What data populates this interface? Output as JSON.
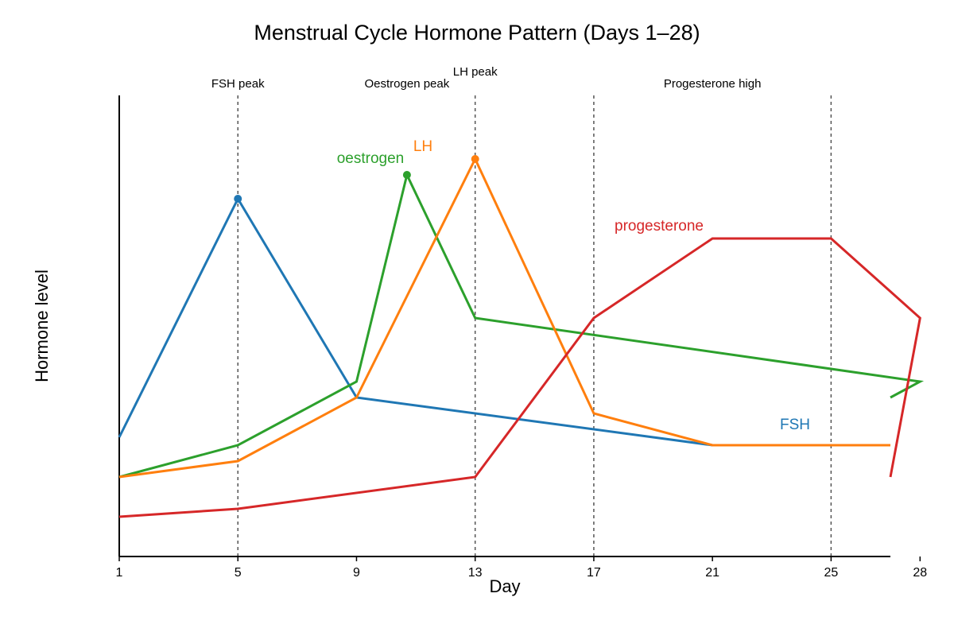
{
  "chart_data": {
    "type": "line",
    "title": "Menstrual Cycle Hormone Pattern (Days 1–28)",
    "xlabel": "Day",
    "ylabel": "Hormone level",
    "xlim": [
      1,
      27
    ],
    "ylim": [
      0,
      30
    ],
    "x_ticks": [
      1,
      5,
      9,
      13,
      17,
      21,
      25,
      28
    ],
    "tick_labels": [
      "1",
      "5",
      "9",
      "13",
      "17",
      "21",
      "25",
      "28"
    ],
    "grid": false,
    "phase_markers": [
      {
        "label": "FSH peak",
        "day": 5,
        "dashed_line": true
      },
      {
        "label": "Oestrogen peak",
        "day": 10.7,
        "dashed_line": false
      },
      {
        "label": "LH peak",
        "day": 13,
        "dashed_line": true
      },
      {
        "label": "",
        "day": 17,
        "dashed_line": true
      },
      {
        "label": "Progesterone high",
        "day": 21,
        "dashed_line": false
      },
      {
        "label": "",
        "day": 25,
        "dashed_line": true
      }
    ],
    "series": [
      {
        "name": "FSH",
        "color": "#1f77b4",
        "x": [
          1,
          5,
          9,
          21,
          27
        ],
        "y": [
          7.5,
          22.5,
          10,
          7,
          7
        ],
        "peak_x": 5,
        "peak_y": 22.5
      },
      {
        "name": "oestrogen",
        "color": "#2ca02c",
        "x": [
          1,
          5,
          9,
          10.7,
          13,
          28,
          27
        ],
        "y": [
          5,
          7,
          11,
          24,
          15,
          11,
          10
        ],
        "peak_x": 10.7,
        "peak_y": 24
      },
      {
        "name": "LH",
        "color": "#ff7f0e",
        "x": [
          1,
          5,
          9,
          13,
          17,
          21,
          27
        ],
        "y": [
          5,
          6,
          10,
          25,
          9,
          7,
          7
        ],
        "peak_x": 13,
        "peak_y": 25
      },
      {
        "name": "progesterone",
        "color": "#d62728",
        "x": [
          1,
          5,
          13,
          17,
          21,
          25,
          28,
          27
        ],
        "y": [
          2.5,
          3,
          5,
          15,
          20,
          20,
          15,
          5
        ]
      }
    ]
  }
}
